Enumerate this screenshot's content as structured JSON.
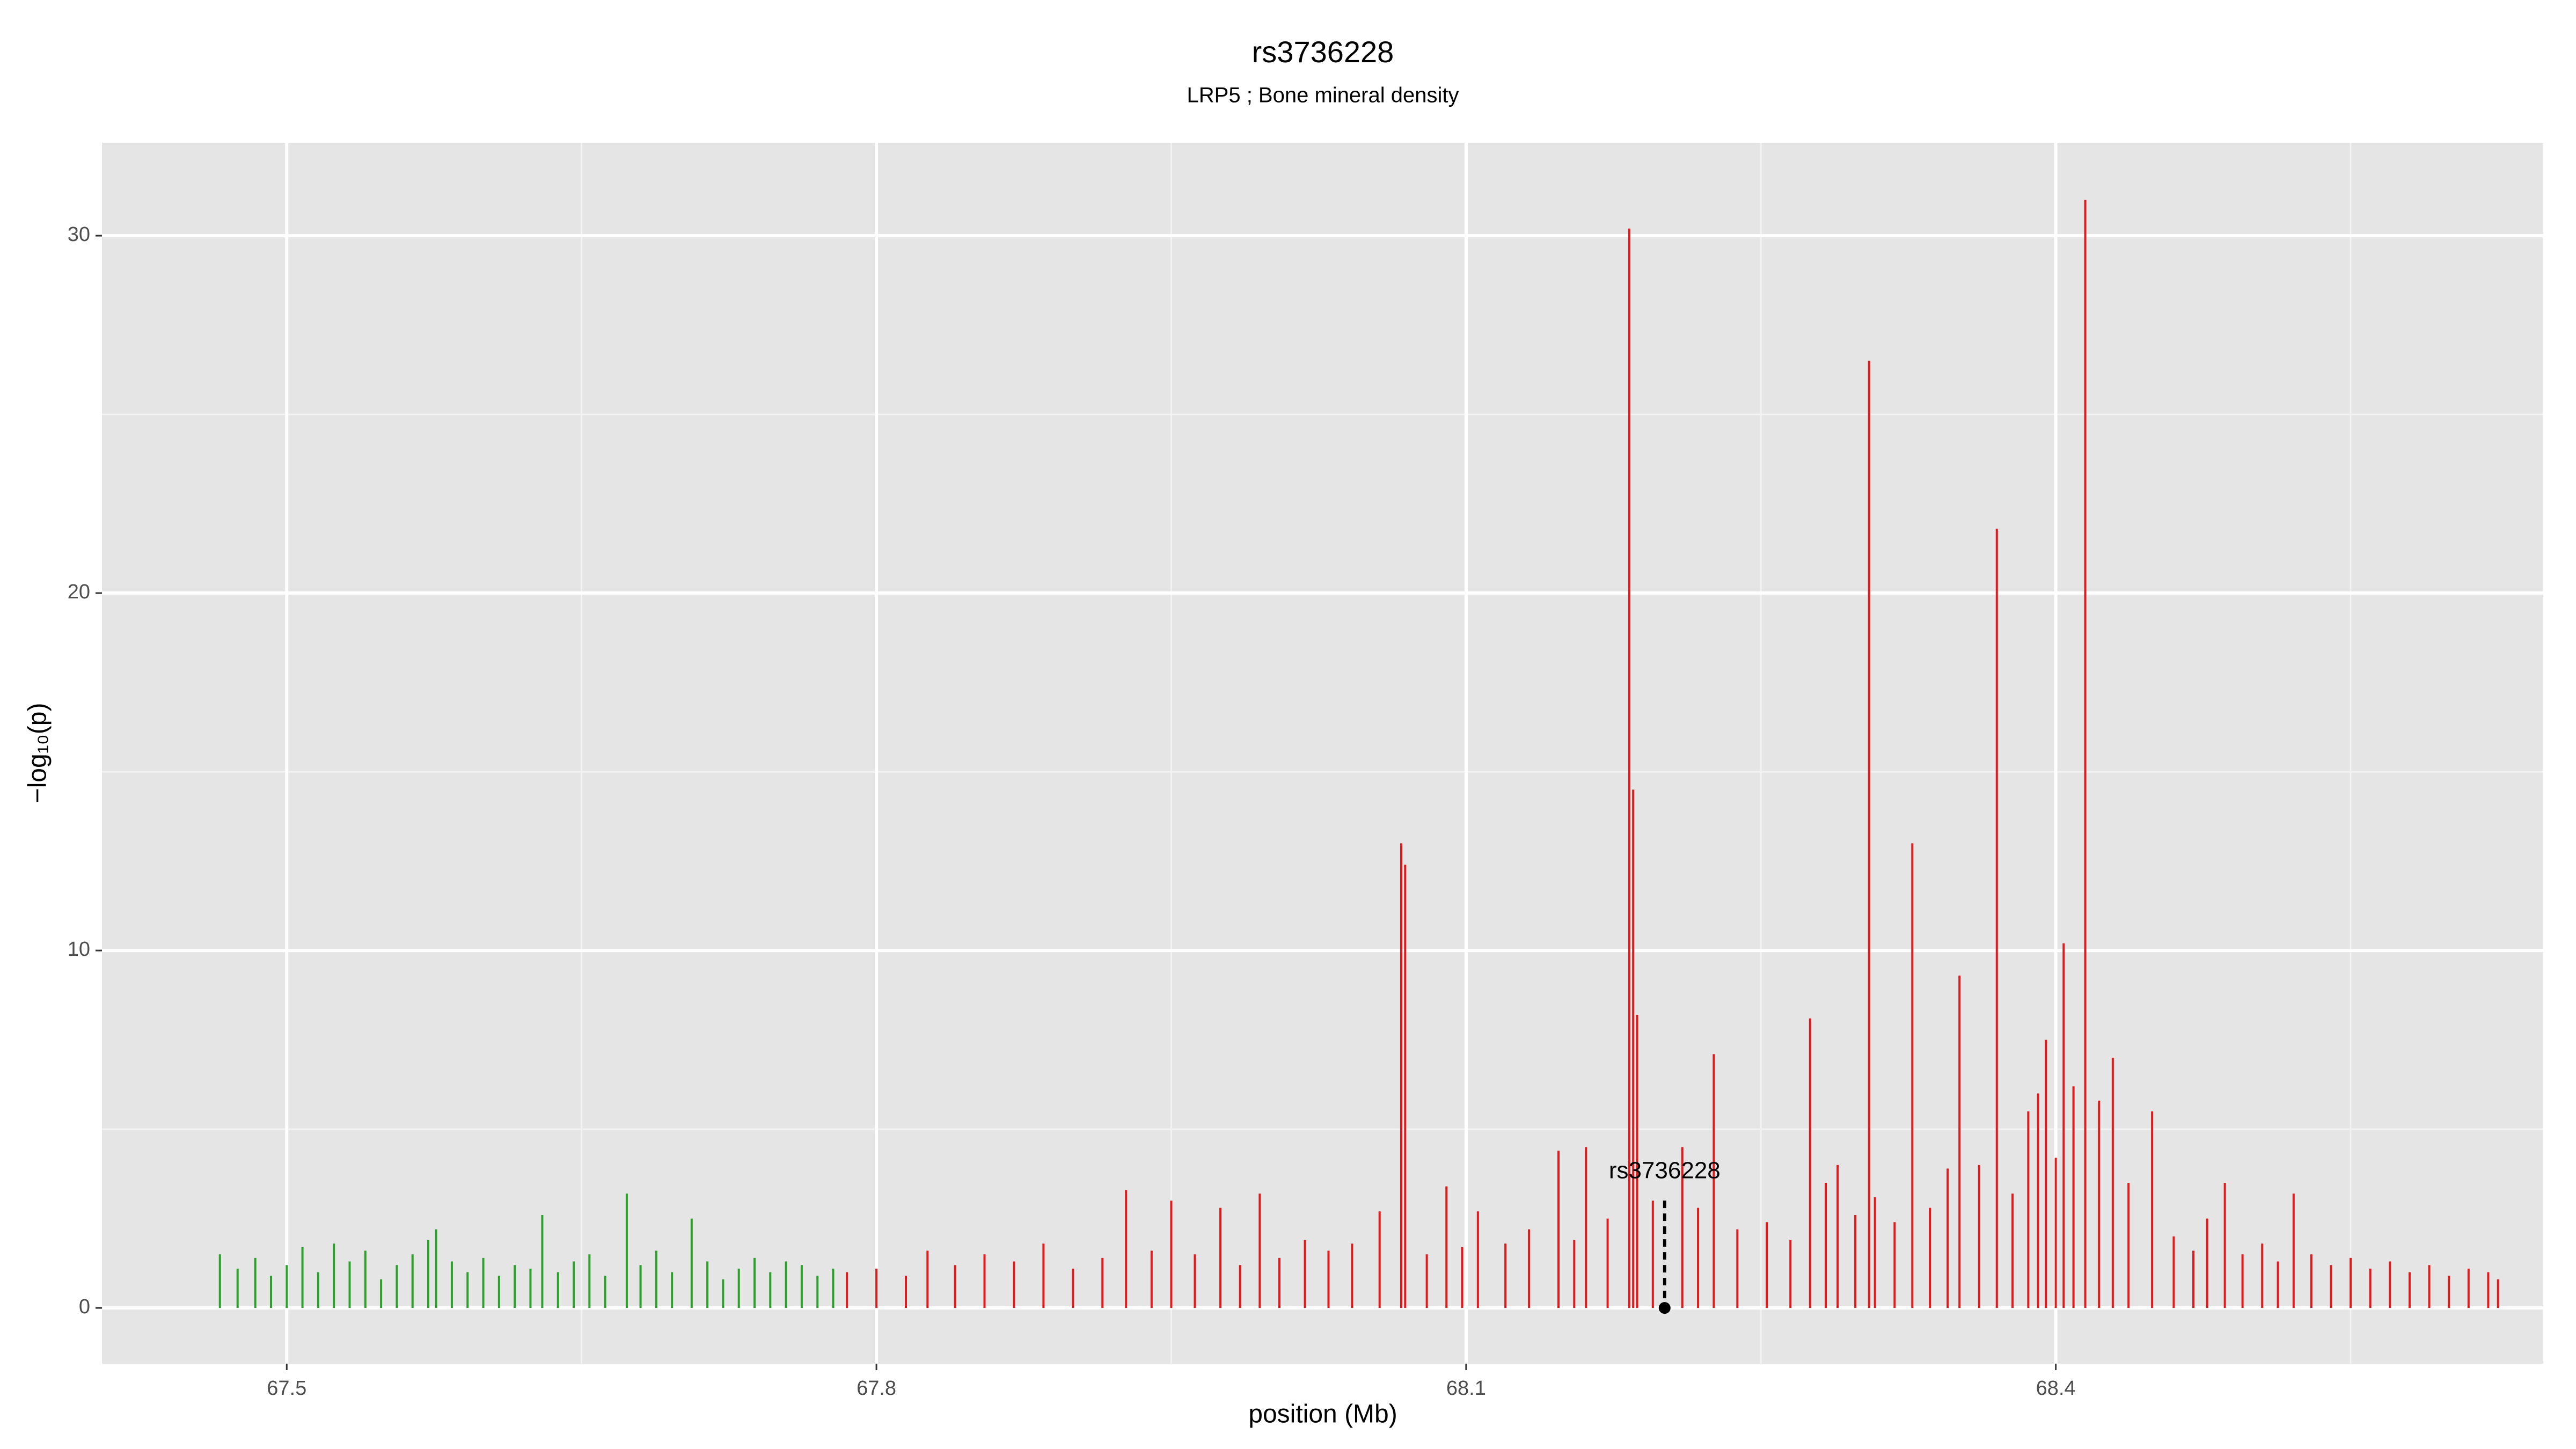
{
  "chart_data": {
    "type": "spike",
    "title": "rs3736228",
    "subtitle": "LRP5 ; Bone mineral density",
    "xlabel": "position (Mb)",
    "ylabel": "−log₁₀(p)",
    "xlim": [
      67.406,
      68.648
    ],
    "ylim": [
      -1.56,
      32.6
    ],
    "xticks": [
      67.5,
      67.8,
      68.1,
      68.4
    ],
    "yticks": [
      0,
      10,
      20,
      30
    ],
    "xminor": [
      67.65,
      67.95,
      68.25,
      68.55
    ],
    "yminor": [
      5,
      15,
      25
    ],
    "grid": true,
    "panel_color": "#e5e5e5",
    "annotation": {
      "label": "rs3736228",
      "x": 68.201
    },
    "series": [
      {
        "color": "#2ca02c",
        "x": [
          67.466,
          67.475,
          67.484,
          67.492,
          67.5,
          67.508,
          67.516,
          67.524,
          67.532,
          67.54,
          67.548,
          67.556,
          67.564,
          67.572,
          67.576,
          67.584,
          67.592,
          67.6,
          67.608,
          67.616,
          67.624,
          67.63,
          67.638,
          67.646,
          67.654,
          67.662,
          67.673,
          67.68,
          67.688,
          67.696,
          67.706,
          67.714,
          67.722,
          67.73,
          67.738,
          67.746,
          67.754,
          67.762,
          67.77,
          67.778
        ],
        "values": [
          1.5,
          1.1,
          1.4,
          0.9,
          1.2,
          1.7,
          1.0,
          1.8,
          1.3,
          1.6,
          0.8,
          1.2,
          1.5,
          1.9,
          2.2,
          1.3,
          1.0,
          1.4,
          0.9,
          1.2,
          1.1,
          2.6,
          1.0,
          1.3,
          1.5,
          0.9,
          3.2,
          1.2,
          1.6,
          1.0,
          2.5,
          1.3,
          0.8,
          1.1,
          1.4,
          1.0,
          1.3,
          1.2,
          0.9,
          1.1
        ]
      },
      {
        "color": "#e31a1c",
        "x": [
          67.785,
          67.8,
          67.815,
          67.826,
          67.84,
          67.855,
          67.87,
          67.885,
          67.9,
          67.915,
          67.927,
          67.94,
          67.95,
          67.962,
          67.975,
          67.985,
          67.995,
          68.005,
          68.018,
          68.03,
          68.042,
          68.056,
          68.067,
          68.069,
          68.08,
          68.09,
          68.098,
          68.106,
          68.12,
          68.132,
          68.147,
          68.155,
          68.161,
          68.172,
          68.183,
          68.185,
          68.187,
          68.195,
          68.21,
          68.218,
          68.226,
          68.238,
          68.253,
          68.265,
          68.275,
          68.283,
          68.289,
          68.298,
          68.305,
          68.308,
          68.318,
          68.327,
          68.336,
          68.345,
          68.351,
          68.361,
          68.37,
          68.378,
          68.386,
          68.391,
          68.395,
          68.4,
          68.404,
          68.409,
          68.415,
          68.422,
          68.429,
          68.437,
          68.449,
          68.46,
          68.47,
          68.477,
          68.486,
          68.495,
          68.505,
          68.513,
          68.521,
          68.53,
          68.54,
          68.55,
          68.56,
          68.57,
          68.58,
          68.59,
          68.6,
          68.61,
          68.62,
          68.625
        ],
        "values": [
          1.0,
          1.1,
          0.9,
          1.6,
          1.2,
          1.5,
          1.3,
          1.8,
          1.1,
          1.4,
          3.3,
          1.6,
          3.0,
          1.5,
          2.8,
          1.2,
          3.2,
          1.4,
          1.9,
          1.6,
          1.8,
          2.7,
          13.0,
          12.4,
          1.5,
          3.4,
          1.7,
          2.7,
          1.8,
          2.2,
          4.4,
          1.9,
          4.5,
          2.5,
          30.2,
          14.5,
          8.2,
          3.0,
          4.5,
          2.8,
          7.1,
          2.2,
          2.4,
          1.9,
          8.1,
          3.5,
          4.0,
          2.6,
          26.5,
          3.1,
          2.4,
          13.0,
          2.8,
          3.9,
          9.3,
          4.0,
          21.8,
          3.2,
          5.5,
          6.0,
          7.5,
          4.2,
          10.2,
          6.2,
          31.0,
          5.8,
          7.0,
          3.5,
          5.5,
          2.0,
          1.6,
          2.5,
          3.5,
          1.5,
          1.8,
          1.3,
          3.2,
          1.5,
          1.2,
          1.4,
          1.1,
          1.3,
          1.0,
          1.2,
          0.9,
          1.1,
          1.0,
          0.8
        ]
      }
    ]
  }
}
